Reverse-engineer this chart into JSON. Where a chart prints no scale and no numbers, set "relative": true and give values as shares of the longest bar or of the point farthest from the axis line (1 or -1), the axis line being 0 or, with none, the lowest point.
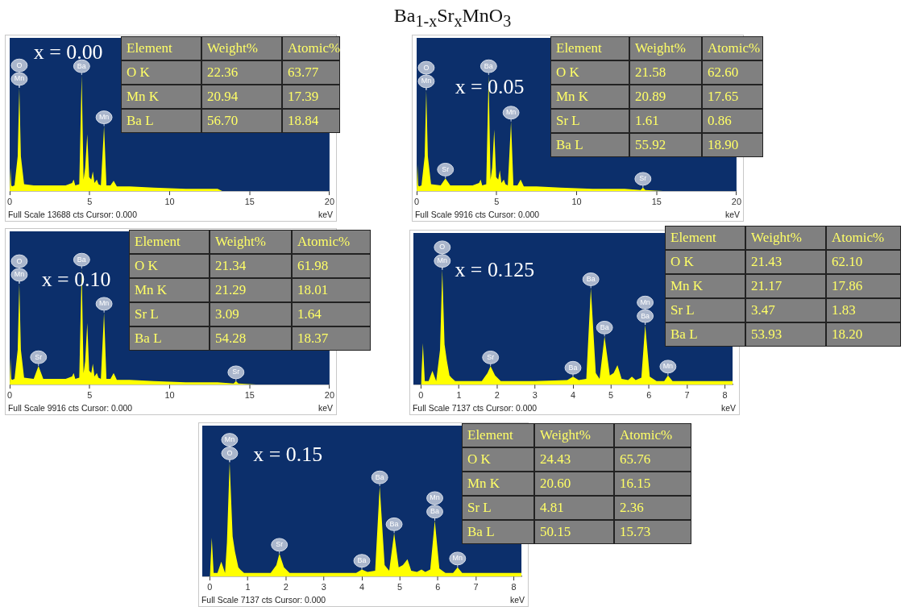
{
  "chart_data": [
    {
      "type": "other",
      "title": "Ba$_{1-x}$Sr$_{x}$MnO$_{3}$"
    },
    {
      "type": "area",
      "relative": true,
      "xlabel": "keV",
      "xlim": [
        0,
        20
      ],
      "xticks": [
        0,
        5,
        10,
        15,
        20
      ],
      "series": [
        {
          "color": "#ffff00",
          "x": [
            0,
            0.05,
            0.1,
            0.15,
            0.3,
            0.5,
            0.6,
            0.7,
            0.9,
            1.5,
            2.5,
            3.5,
            3.9,
            4.0,
            4.1,
            4.35,
            4.5,
            4.62,
            4.72,
            4.85,
            4.97,
            5.1,
            5.2,
            5.3,
            5.45,
            5.55,
            5.7,
            5.9,
            6.05,
            6.3,
            6.5,
            6.7,
            7.5,
            9,
            11,
            13,
            13.3
          ],
          "values": [
            0,
            0.2,
            0.05,
            0.04,
            0.05,
            0.3,
            0.89,
            0.3,
            0.06,
            0.05,
            0.05,
            0.05,
            0.07,
            0.1,
            0.05,
            0.06,
            1.0,
            0.1,
            0.2,
            0.49,
            0.12,
            0.1,
            0.17,
            0.07,
            0.1,
            0.06,
            0.05,
            0.56,
            0.05,
            0.05,
            0.09,
            0.04,
            0.04,
            0.03,
            0.02,
            0.02,
            0
          ]
        }
      ],
      "annotations": [
        "x = 0.00",
        "Full Scale 13688 cts Cursor: 0.000",
        {
          "text": "O",
          "x": 0.6,
          "y": 0.89
        },
        {
          "text": "Mn",
          "x": 0.6,
          "y": 0.89
        },
        {
          "text": "Ba",
          "x": 4.5,
          "y": 1.0
        },
        {
          "text": "Mn",
          "x": 5.9,
          "y": 0.56
        }
      ]
    },
    {
      "type": "heatmap",
      "data_labels": true,
      "ylabel": "Element",
      "categories": [
        "Weight%",
        "Atomic%"
      ],
      "y_categories": [
        "O K",
        "Mn K",
        "Ba L"
      ],
      "cells": [
        [
          22.36,
          63.77
        ],
        [
          20.94,
          17.39
        ],
        [
          56.7,
          18.84
        ]
      ],
      "cell_labels": [
        [
          "22.36",
          "63.77"
        ],
        [
          "20.94",
          "17.39"
        ],
        [
          "56.70",
          "18.84"
        ]
      ]
    },
    {
      "type": "area",
      "relative": true,
      "xlabel": "keV",
      "xlim": [
        0,
        20
      ],
      "xticks": [
        0,
        5,
        10,
        15,
        20
      ],
      "series": [
        {
          "color": "#ffff00",
          "x": [
            0,
            0.05,
            0.1,
            0.15,
            0.3,
            0.5,
            0.6,
            0.7,
            0.9,
            1.5,
            1.8,
            2.1,
            3.5,
            3.9,
            4.0,
            4.1,
            4.35,
            4.5,
            4.62,
            4.72,
            4.85,
            4.97,
            5.1,
            5.2,
            5.3,
            5.45,
            5.55,
            5.7,
            5.9,
            6.05,
            6.3,
            6.5,
            6.7,
            7.5,
            9,
            11,
            13,
            14,
            14.15,
            14.3,
            15.5
          ],
          "values": [
            0,
            0.23,
            0.05,
            0.04,
            0.05,
            0.3,
            0.87,
            0.3,
            0.06,
            0.05,
            0.11,
            0.05,
            0.05,
            0.07,
            0.1,
            0.05,
            0.06,
            1.0,
            0.1,
            0.2,
            0.53,
            0.12,
            0.1,
            0.18,
            0.07,
            0.1,
            0.06,
            0.05,
            0.6,
            0.05,
            0.05,
            0.1,
            0.04,
            0.04,
            0.03,
            0.02,
            0.02,
            0.01,
            0.03,
            0.01,
            0
          ]
        }
      ],
      "annotations": [
        "x = 0.05",
        "Full Scale 9916 cts Cursor: 0.000",
        {
          "text": "O",
          "x": 0.6,
          "y": 0.87
        },
        {
          "text": "Mn",
          "x": 0.6,
          "y": 0.87
        },
        {
          "text": "Sr",
          "x": 1.8,
          "y": 0.11
        },
        {
          "text": "Ba",
          "x": 4.5,
          "y": 1.0
        },
        {
          "text": "Mn",
          "x": 5.9,
          "y": 0.6
        },
        {
          "text": "Sr",
          "x": 14.15,
          "y": 0.03
        }
      ]
    },
    {
      "type": "heatmap",
      "data_labels": true,
      "ylabel": "Element",
      "categories": [
        "Weight%",
        "Atomic%"
      ],
      "y_categories": [
        "O K",
        "Mn K",
        "Sr L",
        "Ba L"
      ],
      "cells": [
        [
          21.58,
          62.6
        ],
        [
          20.89,
          17.65
        ],
        [
          1.61,
          0.86
        ],
        [
          55.92,
          18.9
        ]
      ],
      "cell_labels": [
        [
          "21.58",
          "62.60"
        ],
        [
          "20.89",
          "17.65"
        ],
        [
          "1.61",
          "0.86"
        ],
        [
          "55.92",
          "18.90"
        ]
      ]
    },
    {
      "type": "area",
      "relative": true,
      "xlabel": "keV",
      "xlim": [
        0,
        20
      ],
      "xticks": [
        0,
        5,
        10,
        15,
        20
      ],
      "series": [
        {
          "color": "#ffff00",
          "x": [
            0,
            0.05,
            0.1,
            0.15,
            0.3,
            0.5,
            0.6,
            0.7,
            0.9,
            1.5,
            1.8,
            2.1,
            3.5,
            3.9,
            4.0,
            4.1,
            4.35,
            4.5,
            4.62,
            4.72,
            4.85,
            4.97,
            5.1,
            5.2,
            5.3,
            5.45,
            5.55,
            5.7,
            5.9,
            6.05,
            6.3,
            6.5,
            6.7,
            7.5,
            9,
            11,
            13,
            14,
            14.15,
            14.3,
            15.5
          ],
          "values": [
            0,
            0.23,
            0.05,
            0.04,
            0.05,
            0.3,
            0.87,
            0.3,
            0.06,
            0.05,
            0.16,
            0.05,
            0.05,
            0.07,
            0.1,
            0.05,
            0.06,
            1.0,
            0.1,
            0.2,
            0.53,
            0.12,
            0.1,
            0.18,
            0.07,
            0.1,
            0.06,
            0.05,
            0.62,
            0.05,
            0.05,
            0.1,
            0.04,
            0.04,
            0.03,
            0.02,
            0.02,
            0.01,
            0.03,
            0.01,
            0
          ]
        }
      ],
      "annotations": [
        "x = 0.10",
        "Full Scale 9916 cts Cursor: 0.000",
        {
          "text": "O",
          "x": 0.6,
          "y": 0.87
        },
        {
          "text": "Mn",
          "x": 0.6,
          "y": 0.87
        },
        {
          "text": "Sr",
          "x": 1.8,
          "y": 0.16
        },
        {
          "text": "Ba",
          "x": 4.5,
          "y": 1.0
        },
        {
          "text": "Mn",
          "x": 5.9,
          "y": 0.62
        },
        {
          "text": "Sr",
          "x": 14.15,
          "y": 0.03
        }
      ]
    },
    {
      "type": "heatmap",
      "data_labels": true,
      "ylabel": "Element",
      "categories": [
        "Weight%",
        "Atomic%"
      ],
      "y_categories": [
        "O K",
        "Mn K",
        "Sr L",
        "Ba L"
      ],
      "cells": [
        [
          21.34,
          61.98
        ],
        [
          21.29,
          18.01
        ],
        [
          3.09,
          1.64
        ],
        [
          54.28,
          18.37
        ]
      ],
      "cell_labels": [
        [
          "21.34",
          "61.98"
        ],
        [
          "21.29",
          "18.01"
        ],
        [
          "3.09",
          "1.64"
        ],
        [
          "54.28",
          "18.37"
        ]
      ]
    },
    {
      "type": "area",
      "relative": true,
      "xlabel": "keV",
      "xlim": [
        -0.2,
        8.2
      ],
      "xticks": [
        0,
        1,
        2,
        3,
        4,
        5,
        6,
        7,
        8
      ],
      "series": [
        {
          "color": "#ffff00",
          "x": [
            0,
            0.05,
            0.1,
            0.2,
            0.3,
            0.4,
            0.5,
            0.56,
            0.62,
            0.68,
            0.75,
            0.8,
            0.9,
            1.2,
            1.6,
            1.75,
            1.83,
            1.95,
            2.1,
            3,
            3.85,
            4.0,
            4.15,
            4.35,
            4.47,
            4.6,
            4.7,
            4.83,
            4.97,
            5.07,
            5.17,
            5.28,
            5.45,
            5.55,
            5.65,
            5.8,
            5.9,
            6.02,
            6.2,
            6.4,
            6.5,
            6.62,
            7,
            8.2
          ],
          "values": [
            0,
            0.36,
            0.03,
            0.03,
            0.12,
            0.03,
            0.3,
            1.0,
            0.35,
            0.21,
            0.08,
            0.06,
            0.03,
            0.03,
            0.03,
            0.1,
            0.16,
            0.08,
            0.03,
            0.03,
            0.04,
            0.07,
            0.04,
            0.05,
            0.84,
            0.1,
            0.05,
            0.42,
            0.08,
            0.1,
            0.17,
            0.05,
            0.04,
            0.07,
            0.04,
            0.06,
            0.52,
            0.07,
            0.03,
            0.03,
            0.08,
            0.03,
            0.03,
            0.03
          ]
        }
      ],
      "annotations": [
        "x = 0.125",
        "Full Scale 7137 cts Cursor: 0.000",
        {
          "text": "O",
          "x": 0.56,
          "y": 1.0
        },
        {
          "text": "Mn",
          "x": 0.56,
          "y": 1.0
        },
        {
          "text": "Sr",
          "x": 1.83,
          "y": 0.16
        },
        {
          "text": "Ba",
          "x": 4.0,
          "y": 0.07
        },
        {
          "text": "Ba",
          "x": 4.47,
          "y": 0.84
        },
        {
          "text": "Ba",
          "x": 4.83,
          "y": 0.42
        },
        {
          "text": "Mn",
          "x": 5.9,
          "y": 0.52
        },
        {
          "text": "Ba",
          "x": 5.9,
          "y": 0.52
        },
        {
          "text": "Mn",
          "x": 6.5,
          "y": 0.08
        }
      ]
    },
    {
      "type": "heatmap",
      "data_labels": true,
      "ylabel": "Element",
      "categories": [
        "Weight%",
        "Atomic%"
      ],
      "y_categories": [
        "O K",
        "Mn K",
        "Sr L",
        "Ba L"
      ],
      "cells": [
        [
          21.43,
          62.1
        ],
        [
          21.17,
          17.86
        ],
        [
          3.47,
          1.83
        ],
        [
          53.93,
          18.2
        ]
      ],
      "cell_labels": [
        [
          "21.43",
          "62.10"
        ],
        [
          "21.17",
          "17.86"
        ],
        [
          "3.47",
          "1.83"
        ],
        [
          "53.93",
          "18.20"
        ]
      ]
    },
    {
      "type": "area",
      "relative": true,
      "xlabel": "keV",
      "xlim": [
        -0.2,
        8.2
      ],
      "xticks": [
        0,
        1,
        2,
        3,
        4,
        5,
        6,
        7,
        8
      ],
      "series": [
        {
          "color": "#ffff00",
          "x": [
            0,
            0.05,
            0.1,
            0.2,
            0.3,
            0.4,
            0.45,
            0.52,
            0.6,
            0.66,
            0.75,
            0.8,
            0.9,
            1.2,
            1.6,
            1.75,
            1.83,
            1.95,
            2.1,
            3,
            3.85,
            4.0,
            4.15,
            4.35,
            4.47,
            4.6,
            4.72,
            4.85,
            4.97,
            5.08,
            5.2,
            5.3,
            5.45,
            5.57,
            5.67,
            5.8,
            5.92,
            6.04,
            6.2,
            6.4,
            6.52,
            6.64,
            7,
            8.2
          ],
          "values": [
            0,
            0.34,
            0.03,
            0.03,
            0.13,
            0.03,
            0.3,
            1.0,
            0.35,
            0.22,
            0.08,
            0.06,
            0.03,
            0.03,
            0.03,
            0.1,
            0.2,
            0.08,
            0.03,
            0.03,
            0.03,
            0.06,
            0.04,
            0.05,
            0.79,
            0.1,
            0.05,
            0.38,
            0.08,
            0.1,
            0.15,
            0.05,
            0.04,
            0.06,
            0.04,
            0.06,
            0.49,
            0.07,
            0.03,
            0.03,
            0.08,
            0.03,
            0.03,
            0.03
          ]
        }
      ],
      "annotations": [
        "x = 0.15",
        "Full Scale 7137 cts Cursor: 0.000",
        {
          "text": "Mn",
          "x": 0.52,
          "y": 1.0
        },
        {
          "text": "O",
          "x": 0.52,
          "y": 1.0
        },
        {
          "text": "Sr",
          "x": 1.83,
          "y": 0.2
        },
        {
          "text": "Ba",
          "x": 4.0,
          "y": 0.06
        },
        {
          "text": "Ba",
          "x": 4.47,
          "y": 0.79
        },
        {
          "text": "Ba",
          "x": 4.85,
          "y": 0.38
        },
        {
          "text": "Mn",
          "x": 5.92,
          "y": 0.49
        },
        {
          "text": "Ba",
          "x": 5.92,
          "y": 0.49
        },
        {
          "text": "Mn",
          "x": 6.52,
          "y": 0.08
        }
      ]
    },
    {
      "type": "heatmap",
      "data_labels": true,
      "ylabel": "Element",
      "categories": [
        "Weight%",
        "Atomic%"
      ],
      "y_categories": [
        "O K",
        "Mn K",
        "Sr L",
        "Ba L"
      ],
      "cells": [
        [
          24.43,
          65.76
        ],
        [
          20.6,
          16.15
        ],
        [
          4.81,
          2.36
        ],
        [
          50.15,
          15.73
        ]
      ],
      "cell_labels": [
        [
          "24.43",
          "65.76"
        ],
        [
          "20.60",
          "16.15"
        ],
        [
          "4.81",
          "2.36"
        ],
        [
          "50.15",
          "15.73"
        ]
      ]
    }
  ]
}
